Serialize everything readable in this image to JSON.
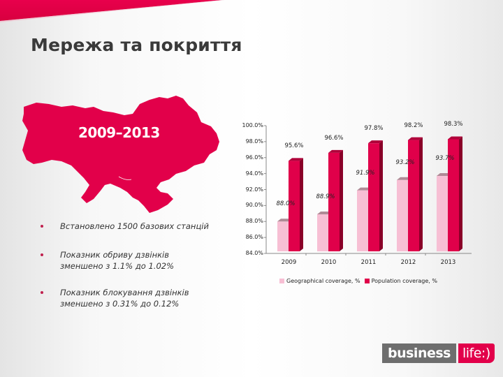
{
  "slide": {
    "title": "Мережа та покриття",
    "map_label": "2009–2013",
    "bullets": [
      {
        "line1": "Встановлено 1500 базових станцій",
        "line2": ""
      },
      {
        "line1": "Показник обриву дзвінків",
        "line2": "зменшено з 1.1% до 1.02%"
      },
      {
        "line1": "Показник блокування дзвінків",
        "line2": "зменшено з 0.31% до 0.12%"
      }
    ],
    "logo": {
      "left": "business",
      "right": "life:)"
    }
  },
  "colors": {
    "brand_red": "#e2004a",
    "geo_bar": "#f7bfd4",
    "pop_bar": "#e0004a",
    "logo_gray": "#6e6e6e"
  },
  "chart_data": {
    "type": "bar",
    "title": "",
    "xlabel": "",
    "ylabel": "",
    "categories": [
      "2009",
      "2010",
      "2011",
      "2012",
      "2013"
    ],
    "series": [
      {
        "name": "Geographical coverage, %",
        "values": [
          88.0,
          88.9,
          91.9,
          93.2,
          93.7
        ],
        "labels": [
          "88.0%",
          "88.9%",
          "91.9%",
          "93.2%",
          "93.7%"
        ]
      },
      {
        "name": "Population coverage, %",
        "values": [
          95.6,
          96.6,
          97.8,
          98.2,
          98.3
        ],
        "labels": [
          "95.6%",
          "96.6%",
          "97.8%",
          "98.2%",
          "98.3%"
        ]
      }
    ],
    "ylim": [
      84.0,
      100.0
    ],
    "yticks": [
      "100.0%",
      "98.0%",
      "96.0%",
      "94.0%",
      "92.0%",
      "90.0%",
      "88.0%",
      "86.0%",
      "84.0%"
    ],
    "grid": false,
    "legend_position": "bottom",
    "style": "3d-clustered-column"
  }
}
